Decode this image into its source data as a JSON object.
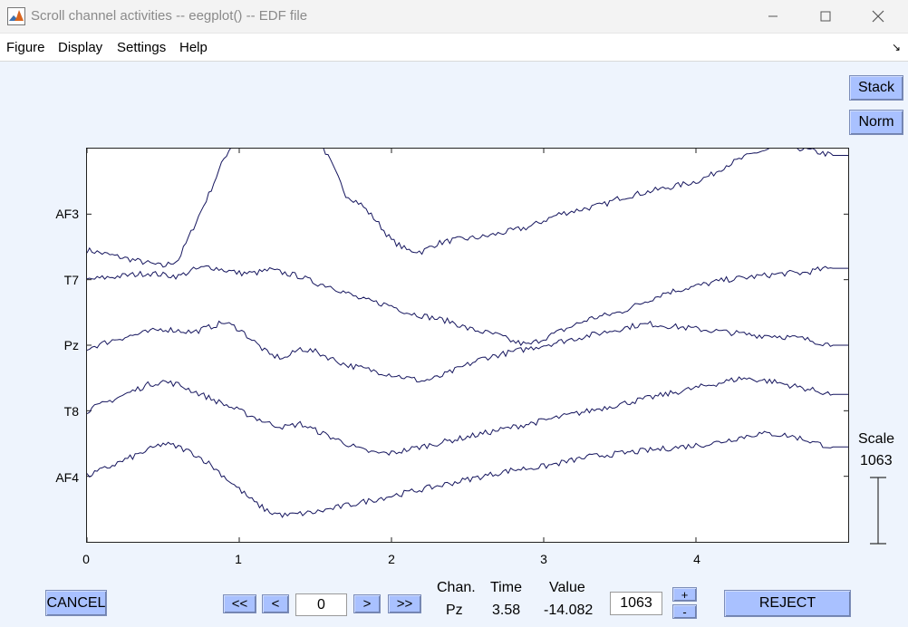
{
  "window": {
    "title": "Scroll channel activities -- eegplot() -- EDF file",
    "icon": "matlab-icon"
  },
  "menu": [
    "Figure",
    "Display",
    "Settings",
    "Help"
  ],
  "buttons": {
    "stack": "Stack",
    "norm": "Norm",
    "cancel": "CANCEL",
    "reject": "REJECT",
    "first": "<<",
    "prev": "<",
    "next": ">",
    "last": ">>",
    "plus": "+",
    "minus": "-"
  },
  "nav": {
    "position": "0"
  },
  "scale": {
    "label": "Scale",
    "value": "1063",
    "input": "1063"
  },
  "readout": {
    "chan_header": "Chan.",
    "time_header": "Time",
    "value_header": "Value",
    "chan": "Pz",
    "time": "3.58",
    "value": "-14.082"
  },
  "chart_data": {
    "type": "line",
    "channels": [
      "AF3",
      "T7",
      "Pz",
      "T8",
      "AF4"
    ],
    "xlim": [
      0,
      5
    ],
    "x_ticks": [
      "0",
      "1",
      "2",
      "3",
      "4"
    ],
    "x_step": 0.1,
    "series": [
      {
        "name": "AF3",
        "values": [
          -110,
          -120,
          -130,
          -140,
          -150,
          -160,
          -140,
          -40,
          60,
          170,
          250,
          310,
          400,
          420,
          380,
          250,
          160,
          60,
          30,
          -20,
          -80,
          -110,
          -115,
          -90,
          -80,
          -75,
          -70,
          -60,
          -50,
          -40,
          -20,
          0,
          10,
          20,
          30,
          50,
          60,
          70,
          80,
          90,
          100,
          120,
          150,
          170,
          190,
          200,
          210,
          200,
          190,
          180
        ]
      },
      {
        "name": "T7",
        "values": [
          0,
          5,
          10,
          15,
          20,
          15,
          10,
          30,
          40,
          30,
          20,
          20,
          30,
          20,
          10,
          -10,
          -20,
          -40,
          -60,
          -70,
          -80,
          -100,
          -110,
          -120,
          -130,
          -150,
          -160,
          -170,
          -190,
          -200,
          -180,
          -160,
          -140,
          -120,
          -110,
          -100,
          -80,
          -60,
          -40,
          -30,
          -20,
          -10,
          0,
          5,
          10,
          15,
          20,
          20,
          30,
          35
        ]
      },
      {
        "name": "Pz",
        "values": [
          -10,
          5,
          20,
          30,
          40,
          50,
          45,
          40,
          55,
          70,
          50,
          10,
          -30,
          -40,
          -10,
          -20,
          -40,
          -60,
          -70,
          -80,
          -90,
          -100,
          -110,
          -100,
          -80,
          -60,
          -40,
          -30,
          -20,
          -10,
          0,
          10,
          20,
          30,
          40,
          50,
          60,
          65,
          60,
          55,
          50,
          45,
          40,
          35,
          30,
          30,
          25,
          20,
          10,
          0
        ]
      },
      {
        "name": "T8",
        "values": [
          0,
          20,
          40,
          60,
          80,
          90,
          80,
          60,
          40,
          20,
          0,
          -20,
          -40,
          -50,
          -40,
          -60,
          -80,
          -100,
          -120,
          -130,
          -130,
          -120,
          -110,
          -100,
          -90,
          -80,
          -70,
          -60,
          -50,
          -40,
          -30,
          -20,
          -10,
          0,
          10,
          20,
          30,
          40,
          50,
          60,
          70,
          80,
          90,
          100,
          95,
          90,
          80,
          70,
          60,
          50
        ]
      },
      {
        "name": "AF4",
        "values": [
          0,
          20,
          40,
          60,
          80,
          100,
          90,
          70,
          40,
          0,
          -40,
          -80,
          -110,
          -120,
          -115,
          -110,
          -100,
          -90,
          -80,
          -70,
          -60,
          -50,
          -40,
          -30,
          -20,
          -10,
          0,
          10,
          20,
          25,
          30,
          40,
          50,
          60,
          65,
          70,
          75,
          80,
          85,
          90,
          95,
          100,
          110,
          120,
          130,
          130,
          125,
          115,
          100,
          90
        ]
      }
    ]
  }
}
